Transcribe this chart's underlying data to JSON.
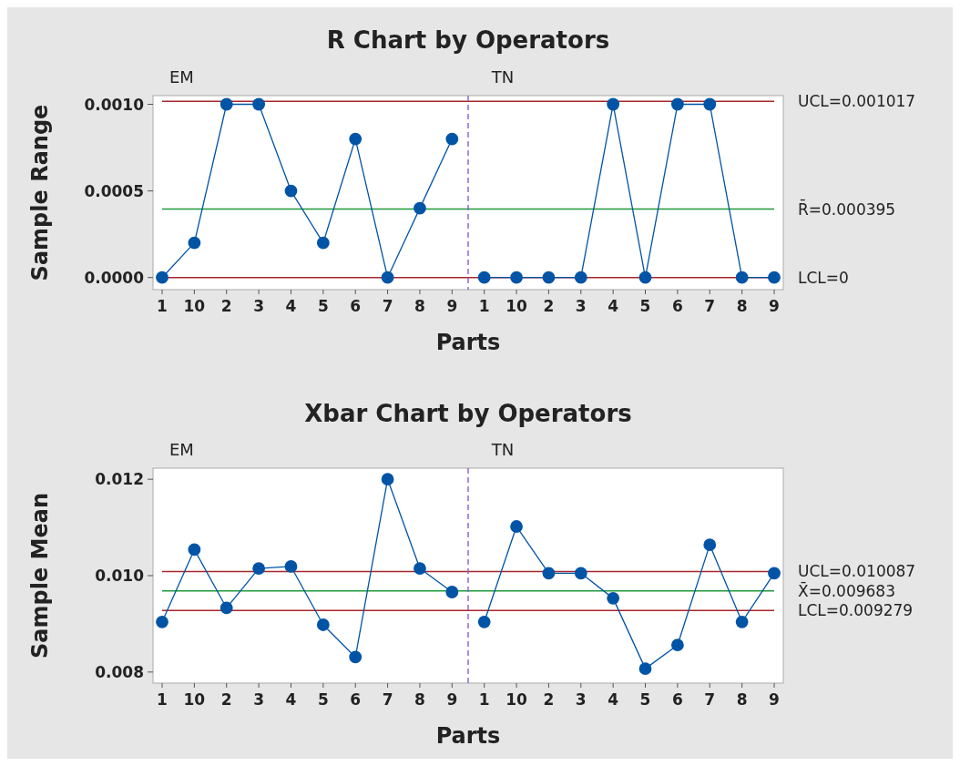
{
  "chart_data": [
    {
      "type": "line",
      "title": "R Chart by Operators",
      "xlabel": "Parts",
      "ylabel": "Sample Range",
      "marker": "circle",
      "grid": false,
      "annotations": [
        "EM",
        "TN"
      ],
      "categories": [
        "1",
        "10",
        "2",
        "3",
        "4",
        "5",
        "6",
        "7",
        "8",
        "9",
        "1",
        "10",
        "2",
        "3",
        "4",
        "5",
        "6",
        "7",
        "8",
        "9"
      ],
      "series": [
        {
          "color": "#0054a6",
          "values": [
            0,
            0.0002,
            0.001,
            0.001,
            0.0005,
            0.0002,
            0.0008,
            0,
            0.0004,
            0.0008,
            null,
            null,
            null,
            null,
            null,
            null,
            null,
            null,
            null,
            null
          ]
        },
        {
          "color": "#0054a6",
          "values": [
            null,
            null,
            null,
            null,
            null,
            null,
            null,
            null,
            null,
            null,
            0,
            0,
            0,
            0,
            0.001,
            0,
            0.001,
            0.001,
            0,
            0
          ]
        }
      ],
      "ylim": [
        -7e-05,
        0.00105
      ],
      "yticks": [
        {
          "value": 0,
          "label": "0.0000"
        },
        0.0005,
        {
          "value": 0.001,
          "label": "0.0010"
        }
      ],
      "ref_lines": [
        {
          "axis": "y",
          "value": 0.001017,
          "label": "UCL=0.001017",
          "color": "#a8262b"
        },
        {
          "axis": "y",
          "value": 0.000395,
          "label": "R̄=0.000395",
          "color": "#1f9a3a"
        },
        {
          "axis": "y",
          "value": 0,
          "label": "LCL=0",
          "color": "#a8262b"
        }
      ]
    },
    {
      "type": "line",
      "title": "Xbar Chart by Operators",
      "xlabel": "Parts",
      "ylabel": "Sample Mean",
      "marker": "circle",
      "grid": false,
      "annotations": [
        "EM",
        "TN"
      ],
      "categories": [
        "1",
        "10",
        "2",
        "3",
        "4",
        "5",
        "6",
        "7",
        "8",
        "9",
        "1",
        "10",
        "2",
        "3",
        "4",
        "5",
        "6",
        "7",
        "8",
        "9"
      ],
      "series": [
        {
          "color": "#0054a6",
          "values": [
            0.00904,
            0.01054,
            0.00933,
            0.01015,
            0.01019,
            0.00898,
            0.00831,
            0.012,
            0.01015,
            0.00966,
            null,
            null,
            null,
            null,
            null,
            null,
            null,
            null,
            null,
            null
          ]
        },
        {
          "color": "#0054a6",
          "values": [
            null,
            null,
            null,
            null,
            null,
            null,
            null,
            null,
            null,
            null,
            0.00904,
            0.01102,
            0.01005,
            0.01005,
            0.00953,
            0.00807,
            0.00856,
            0.01064,
            0.00904,
            0.01005
          ]
        }
      ],
      "ylim": [
        0.00777,
        0.01223
      ],
      "yticks": [
        0.008,
        {
          "value": 0.01,
          "label": "0.010"
        },
        0.012
      ],
      "ref_lines": [
        {
          "axis": "y",
          "value": 0.010087,
          "label": "UCL=0.010087",
          "color": "#a8262b"
        },
        {
          "axis": "y",
          "value": 0.009683,
          "label": "X̄=0.009683",
          "color": "#1f9a3a"
        },
        {
          "axis": "y",
          "value": 0.009279,
          "label": "LCL=0.009279",
          "color": "#a8262b"
        }
      ]
    }
  ]
}
